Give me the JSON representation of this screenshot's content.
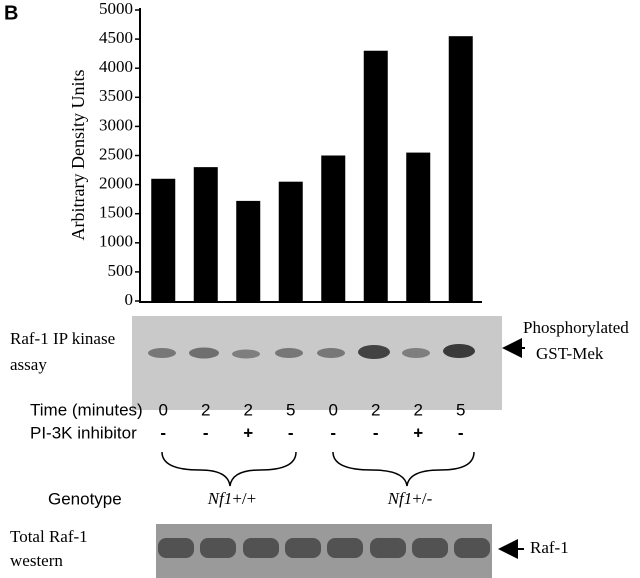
{
  "panel_label": "B",
  "chart_data": {
    "type": "bar",
    "ylabel": "Arbitrary Density Units",
    "categories": [
      null,
      null,
      null,
      null,
      null,
      null,
      null,
      null
    ],
    "values": [
      2100,
      2300,
      1720,
      2050,
      2500,
      4300,
      2550,
      4550
    ],
    "color": "#000000",
    "ylim": [
      0,
      5000
    ],
    "yticks": [
      0,
      500,
      1000,
      1500,
      2000,
      2500,
      3000,
      3500,
      4000,
      4500,
      5000
    ],
    "grid": false
  },
  "kinase_gel": {
    "label_lines": [
      "Raf-1 IP kinase",
      "assay"
    ],
    "arrow_label_lines": [
      "Phosphorylated",
      "GST-Mek"
    ]
  },
  "conditions": {
    "time_label": "Time (minutes)",
    "times": [
      0,
      2,
      2,
      5,
      0,
      2,
      2,
      5
    ],
    "inhibitor_label": "PI-3K inhibitor",
    "inhibitor": [
      "-",
      "-",
      "+",
      "-",
      "-",
      "-",
      "+",
      "-"
    ]
  },
  "genotype": {
    "label": "Genotype",
    "groups": [
      {
        "gene": "Nf1",
        "allele": "+/+"
      },
      {
        "gene": "Nf1",
        "allele": "+/-"
      }
    ]
  },
  "western_gel": {
    "label_lines": [
      "Total Raf-1",
      "western"
    ],
    "arrow_label": "Raf-1"
  }
}
